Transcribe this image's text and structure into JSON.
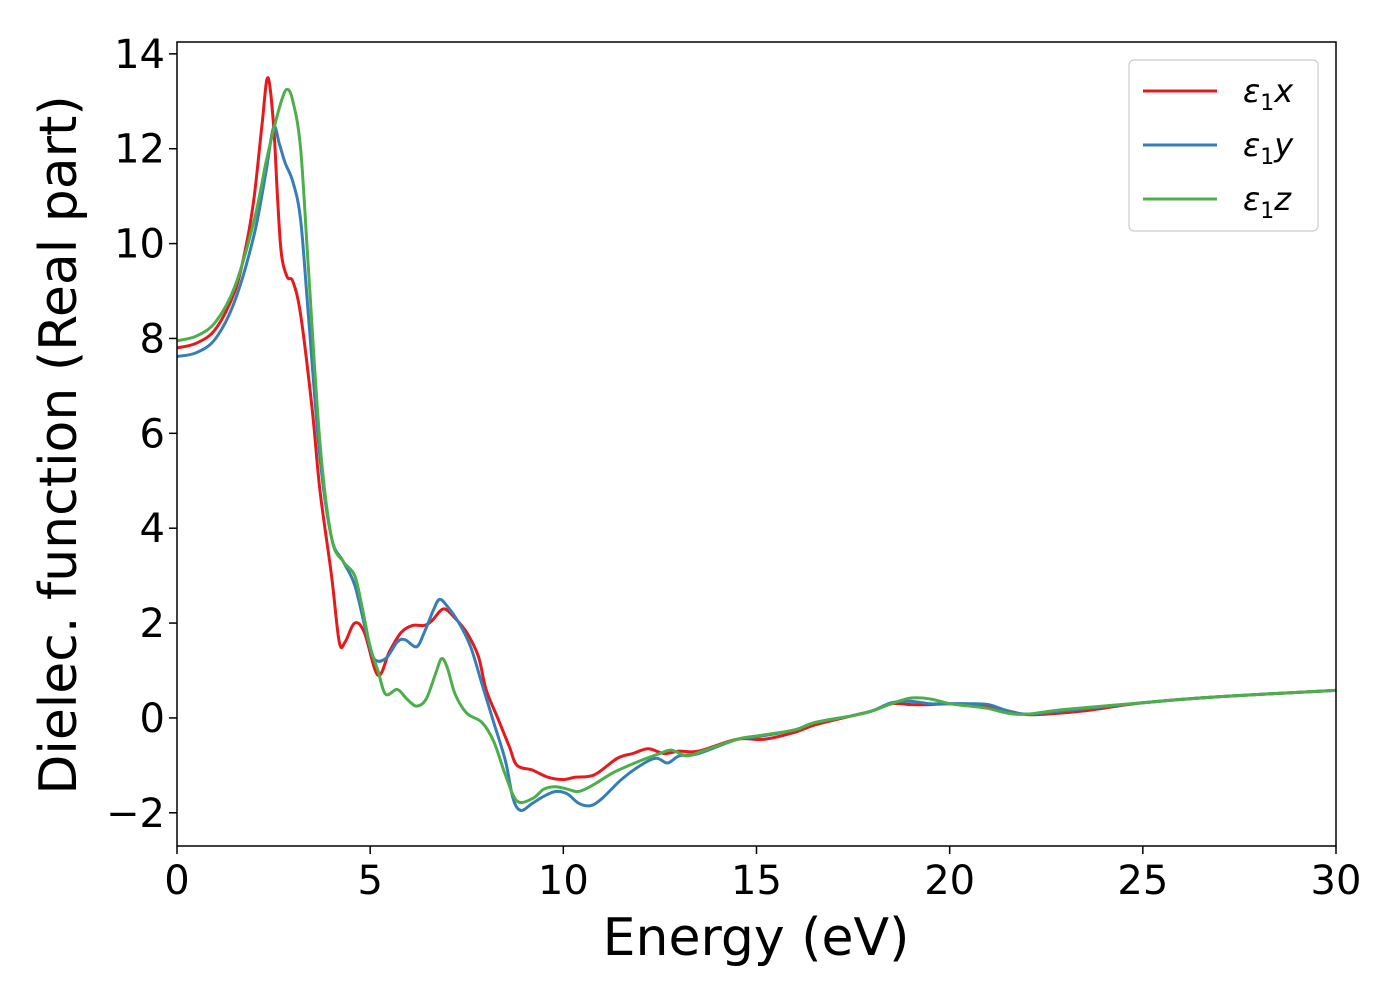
{
  "chart_data": {
    "type": "line",
    "xlabel": "Energy (eV)",
    "ylabel": "Dielec. function (Real part)",
    "xlim": [
      0,
      30
    ],
    "ylim": [
      -2.7,
      14.25
    ],
    "grid": false,
    "legend_position": "top-right",
    "x_ticks": [
      {
        "value": 0,
        "label": "0"
      },
      {
        "value": 5,
        "label": "5"
      },
      {
        "value": 10,
        "label": "10"
      },
      {
        "value": 15,
        "label": "15"
      },
      {
        "value": 20,
        "label": "20"
      },
      {
        "value": 25,
        "label": "25"
      },
      {
        "value": 30,
        "label": "30"
      }
    ],
    "y_ticks": [
      {
        "value": -2,
        "label": "−2"
      },
      {
        "value": 0,
        "label": "0"
      },
      {
        "value": 2,
        "label": "2"
      },
      {
        "value": 4,
        "label": "4"
      },
      {
        "value": 6,
        "label": "6"
      },
      {
        "value": 8,
        "label": "8"
      },
      {
        "value": 10,
        "label": "10"
      },
      {
        "value": 12,
        "label": "12"
      },
      {
        "value": 14,
        "label": "14"
      }
    ],
    "series": [
      {
        "name": "ε1x",
        "legend_main": "ε",
        "legend_sub": "1",
        "legend_suffix": "x",
        "color": "#e41a1c",
        "points": [
          [
            0.0,
            7.8
          ],
          [
            0.5,
            7.9
          ],
          [
            1.0,
            8.2
          ],
          [
            1.5,
            9.0
          ],
          [
            1.8,
            10.0
          ],
          [
            2.0,
            11.0
          ],
          [
            2.2,
            12.5
          ],
          [
            2.35,
            13.5
          ],
          [
            2.5,
            12.5
          ],
          [
            2.6,
            11.0
          ],
          [
            2.7,
            9.8
          ],
          [
            2.85,
            9.3
          ],
          [
            3.0,
            9.2
          ],
          [
            3.2,
            8.5
          ],
          [
            3.5,
            6.5
          ],
          [
            3.7,
            4.8
          ],
          [
            4.0,
            3.0
          ],
          [
            4.2,
            1.6
          ],
          [
            4.35,
            1.6
          ],
          [
            4.6,
            2.0
          ],
          [
            4.85,
            1.8
          ],
          [
            5.2,
            0.9
          ],
          [
            5.5,
            1.4
          ],
          [
            5.8,
            1.8
          ],
          [
            6.1,
            1.95
          ],
          [
            6.4,
            1.95
          ],
          [
            6.6,
            2.05
          ],
          [
            6.9,
            2.3
          ],
          [
            7.2,
            2.1
          ],
          [
            7.5,
            1.8
          ],
          [
            7.8,
            1.3
          ],
          [
            8.0,
            0.6
          ],
          [
            8.3,
            0.0
          ],
          [
            8.6,
            -0.6
          ],
          [
            8.8,
            -1.0
          ],
          [
            9.2,
            -1.1
          ],
          [
            9.6,
            -1.25
          ],
          [
            10.0,
            -1.3
          ],
          [
            10.3,
            -1.25
          ],
          [
            10.8,
            -1.2
          ],
          [
            11.4,
            -0.85
          ],
          [
            11.8,
            -0.75
          ],
          [
            12.2,
            -0.65
          ],
          [
            12.6,
            -0.75
          ],
          [
            13.0,
            -0.7
          ],
          [
            13.5,
            -0.7
          ],
          [
            14.5,
            -0.45
          ],
          [
            15.2,
            -0.45
          ],
          [
            16.0,
            -0.3
          ],
          [
            16.5,
            -0.15
          ],
          [
            17.5,
            0.05
          ],
          [
            18.0,
            0.15
          ],
          [
            18.5,
            0.3
          ],
          [
            19.0,
            0.28
          ],
          [
            19.5,
            0.28
          ],
          [
            20.0,
            0.3
          ],
          [
            20.5,
            0.28
          ],
          [
            21.0,
            0.25
          ],
          [
            21.5,
            0.15
          ],
          [
            22.0,
            0.07
          ],
          [
            22.5,
            0.08
          ],
          [
            23.5,
            0.15
          ],
          [
            25.0,
            0.32
          ],
          [
            27.0,
            0.45
          ],
          [
            30.0,
            0.58
          ]
        ]
      },
      {
        "name": "ε1y",
        "legend_main": "ε",
        "legend_sub": "1",
        "legend_suffix": "y",
        "color": "#377eb8",
        "points": [
          [
            0.0,
            7.62
          ],
          [
            0.5,
            7.7
          ],
          [
            1.0,
            8.0
          ],
          [
            1.5,
            8.8
          ],
          [
            2.0,
            10.2
          ],
          [
            2.3,
            11.5
          ],
          [
            2.5,
            12.45
          ],
          [
            2.65,
            12.1
          ],
          [
            2.8,
            11.7
          ],
          [
            3.0,
            11.3
          ],
          [
            3.2,
            10.5
          ],
          [
            3.4,
            8.5
          ],
          [
            3.7,
            5.5
          ],
          [
            4.0,
            3.8
          ],
          [
            4.3,
            3.3
          ],
          [
            4.6,
            2.8
          ],
          [
            4.9,
            1.8
          ],
          [
            5.1,
            1.25
          ],
          [
            5.4,
            1.25
          ],
          [
            5.7,
            1.6
          ],
          [
            5.9,
            1.65
          ],
          [
            6.2,
            1.5
          ],
          [
            6.4,
            1.8
          ],
          [
            6.65,
            2.3
          ],
          [
            6.8,
            2.5
          ],
          [
            7.0,
            2.35
          ],
          [
            7.3,
            2.0
          ],
          [
            7.6,
            1.5
          ],
          [
            7.9,
            0.7
          ],
          [
            8.2,
            -0.1
          ],
          [
            8.5,
            -0.9
          ],
          [
            8.7,
            -1.7
          ],
          [
            8.9,
            -1.95
          ],
          [
            9.2,
            -1.8
          ],
          [
            9.5,
            -1.65
          ],
          [
            9.8,
            -1.55
          ],
          [
            10.1,
            -1.6
          ],
          [
            10.4,
            -1.8
          ],
          [
            10.7,
            -1.85
          ],
          [
            11.0,
            -1.7
          ],
          [
            11.5,
            -1.3
          ],
          [
            12.0,
            -1.0
          ],
          [
            12.4,
            -0.85
          ],
          [
            12.7,
            -0.95
          ],
          [
            13.0,
            -0.8
          ],
          [
            13.5,
            -0.75
          ],
          [
            14.5,
            -0.45
          ],
          [
            15.0,
            -0.4
          ],
          [
            16.0,
            -0.25
          ],
          [
            16.5,
            -0.1
          ],
          [
            17.5,
            0.05
          ],
          [
            18.0,
            0.15
          ],
          [
            18.5,
            0.32
          ],
          [
            19.0,
            0.35
          ],
          [
            19.5,
            0.3
          ],
          [
            20.0,
            0.3
          ],
          [
            20.5,
            0.3
          ],
          [
            21.0,
            0.28
          ],
          [
            21.5,
            0.15
          ],
          [
            22.0,
            0.08
          ],
          [
            23.0,
            0.15
          ],
          [
            25.0,
            0.32
          ],
          [
            27.0,
            0.45
          ],
          [
            30.0,
            0.58
          ]
        ]
      },
      {
        "name": "ε1z",
        "legend_main": "ε",
        "legend_sub": "1",
        "legend_suffix": "z",
        "color": "#4daf4a",
        "points": [
          [
            0.0,
            7.95
          ],
          [
            0.5,
            8.05
          ],
          [
            1.0,
            8.35
          ],
          [
            1.5,
            9.1
          ],
          [
            2.0,
            10.5
          ],
          [
            2.3,
            11.7
          ],
          [
            2.5,
            12.4
          ],
          [
            2.7,
            13.0
          ],
          [
            2.85,
            13.25
          ],
          [
            3.0,
            13.0
          ],
          [
            3.2,
            12.0
          ],
          [
            3.4,
            9.5
          ],
          [
            3.7,
            5.8
          ],
          [
            4.0,
            3.8
          ],
          [
            4.3,
            3.3
          ],
          [
            4.6,
            3.0
          ],
          [
            4.8,
            2.3
          ],
          [
            5.0,
            1.5
          ],
          [
            5.2,
            1.0
          ],
          [
            5.4,
            0.5
          ],
          [
            5.7,
            0.6
          ],
          [
            5.95,
            0.4
          ],
          [
            6.2,
            0.25
          ],
          [
            6.45,
            0.4
          ],
          [
            6.7,
            0.95
          ],
          [
            6.85,
            1.25
          ],
          [
            7.0,
            1.05
          ],
          [
            7.2,
            0.5
          ],
          [
            7.5,
            0.1
          ],
          [
            7.9,
            -0.1
          ],
          [
            8.2,
            -0.5
          ],
          [
            8.5,
            -1.2
          ],
          [
            8.8,
            -1.75
          ],
          [
            9.2,
            -1.7
          ],
          [
            9.5,
            -1.5
          ],
          [
            9.8,
            -1.45
          ],
          [
            10.1,
            -1.5
          ],
          [
            10.4,
            -1.55
          ],
          [
            10.8,
            -1.4
          ],
          [
            11.3,
            -1.15
          ],
          [
            12.0,
            -0.9
          ],
          [
            12.5,
            -0.75
          ],
          [
            12.8,
            -0.68
          ],
          [
            13.2,
            -0.8
          ],
          [
            13.6,
            -0.7
          ],
          [
            14.5,
            -0.45
          ],
          [
            15.0,
            -0.38
          ],
          [
            16.0,
            -0.25
          ],
          [
            16.5,
            -0.1
          ],
          [
            17.5,
            0.05
          ],
          [
            18.0,
            0.15
          ],
          [
            18.5,
            0.3
          ],
          [
            19.0,
            0.42
          ],
          [
            19.5,
            0.4
          ],
          [
            20.0,
            0.3
          ],
          [
            20.5,
            0.25
          ],
          [
            21.0,
            0.2
          ],
          [
            21.5,
            0.1
          ],
          [
            22.0,
            0.08
          ],
          [
            23.0,
            0.18
          ],
          [
            25.0,
            0.32
          ],
          [
            27.0,
            0.45
          ],
          [
            30.0,
            0.58
          ]
        ]
      }
    ]
  }
}
